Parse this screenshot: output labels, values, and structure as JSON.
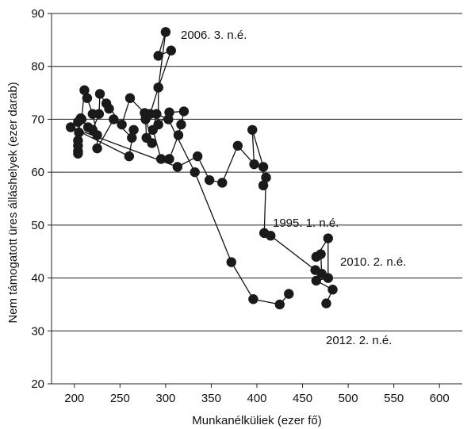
{
  "chart_data": {
    "type": "scatter",
    "title": "",
    "xlabel": "Munkanélküliek (ezer fő)",
    "ylabel": "Nem támogatott üres álláshelyek (ezer darab)",
    "xlim": [
      175,
      625
    ],
    "ylim": [
      20,
      90
    ],
    "xticks": [
      200,
      250,
      300,
      350,
      400,
      450,
      500,
      550,
      600
    ],
    "yticks": [
      20,
      30,
      40,
      50,
      60,
      70,
      80,
      90
    ],
    "grid": "horizontal",
    "connected": true,
    "points": [
      {
        "x": 435,
        "y": 37.0
      },
      {
        "x": 425,
        "y": 35.0
      },
      {
        "x": 396,
        "y": 36.0
      },
      {
        "x": 372,
        "y": 43.0
      },
      {
        "x": 332,
        "y": 60.0
      },
      {
        "x": 303,
        "y": 70.0
      },
      {
        "x": 290,
        "y": 71.0
      },
      {
        "x": 286,
        "y": 68.0
      },
      {
        "x": 295,
        "y": 62.5
      },
      {
        "x": 304,
        "y": 62.5
      },
      {
        "x": 314,
        "y": 67.0
      },
      {
        "x": 317,
        "y": 69.0
      },
      {
        "x": 320,
        "y": 71.5
      },
      {
        "x": 304,
        "y": 71.3
      },
      {
        "x": 292,
        "y": 69.0
      },
      {
        "x": 292,
        "y": 76.0
      },
      {
        "x": 300,
        "y": 86.5
      },
      {
        "x": 292,
        "y": 82.0
      },
      {
        "x": 306,
        "y": 83.0
      },
      {
        "x": 292,
        "y": 76.0
      },
      {
        "x": 283,
        "y": 71.0
      },
      {
        "x": 278,
        "y": 70.0
      },
      {
        "x": 279,
        "y": 66.5
      },
      {
        "x": 285,
        "y": 65.5
      },
      {
        "x": 277,
        "y": 71.2
      },
      {
        "x": 261,
        "y": 74.0
      },
      {
        "x": 252,
        "y": 69.0
      },
      {
        "x": 235,
        "y": 73.0
      },
      {
        "x": 238,
        "y": 72.0
      },
      {
        "x": 228,
        "y": 74.8
      },
      {
        "x": 227,
        "y": 71.0
      },
      {
        "x": 220,
        "y": 68.0
      },
      {
        "x": 215,
        "y": 68.5
      },
      {
        "x": 207,
        "y": 70.2
      },
      {
        "x": 205,
        "y": 67.5
      },
      {
        "x": 204,
        "y": 66.0
      },
      {
        "x": 204,
        "y": 64.0
      },
      {
        "x": 204,
        "y": 63.5
      },
      {
        "x": 204,
        "y": 65.0
      },
      {
        "x": 204,
        "y": 69.5
      },
      {
        "x": 208,
        "y": 70.0
      },
      {
        "x": 211,
        "y": 75.5
      },
      {
        "x": 214,
        "y": 74.0
      },
      {
        "x": 220,
        "y": 71.0
      },
      {
        "x": 225,
        "y": 67.0
      },
      {
        "x": 225,
        "y": 64.5
      },
      {
        "x": 243,
        "y": 70.0
      },
      {
        "x": 263,
        "y": 66.5
      },
      {
        "x": 265,
        "y": 68.0
      },
      {
        "x": 260,
        "y": 63.0
      },
      {
        "x": 196,
        "y": 68.5
      },
      {
        "x": 313,
        "y": 61.0
      },
      {
        "x": 335,
        "y": 63.0
      },
      {
        "x": 348,
        "y": 58.5
      },
      {
        "x": 362,
        "y": 58.0
      },
      {
        "x": 379,
        "y": 65.0
      },
      {
        "x": 397,
        "y": 61.5
      },
      {
        "x": 395,
        "y": 68.0
      },
      {
        "x": 407,
        "y": 61.0
      },
      {
        "x": 407,
        "y": 57.5
      },
      {
        "x": 410,
        "y": 59.0
      },
      {
        "x": 408,
        "y": 48.5
      },
      {
        "x": 415,
        "y": 48.0
      },
      {
        "x": 464,
        "y": 41.5
      },
      {
        "x": 471,
        "y": 40.8
      },
      {
        "x": 470,
        "y": 44.5
      },
      {
        "x": 465,
        "y": 44.0
      },
      {
        "x": 478,
        "y": 47.5
      },
      {
        "x": 478,
        "y": 40.0
      },
      {
        "x": 465,
        "y": 39.5
      },
      {
        "x": 483,
        "y": 37.8
      },
      {
        "x": 476,
        "y": 35.2
      }
    ],
    "annotations": [
      {
        "text": "2006. 3. n.é."
      },
      {
        "text": "1995. 1. n.é."
      },
      {
        "text": "2010. 2. n.é."
      },
      {
        "text": "2012. 2. n.é."
      }
    ]
  }
}
